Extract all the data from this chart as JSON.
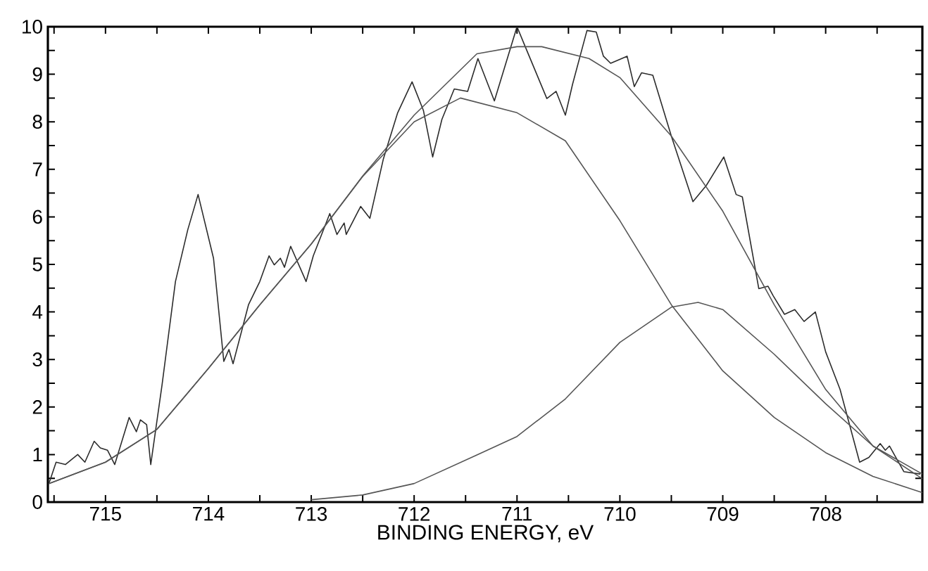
{
  "chart_data": {
    "type": "line",
    "xlabel": "BINDING ENERGY, eV",
    "xlim": [
      715.56,
      707.06
    ],
    "ylim": [
      0,
      10
    ],
    "xticks": [
      715,
      {
        "value": 714.5,
        "label": null
      },
      714,
      {
        "value": 713.5,
        "label": null
      },
      713,
      {
        "value": 712.5,
        "label": null
      },
      712,
      {
        "value": 711.5,
        "label": null
      },
      711,
      {
        "value": 710.5,
        "label": null
      },
      710,
      {
        "value": 709.5,
        "label": null
      },
      709,
      {
        "value": 708.5,
        "label": null
      },
      708,
      {
        "value": 707.5,
        "label": null
      },
      {
        "value": 715.5,
        "label": null
      }
    ],
    "yticks": [
      0,
      {
        "value": 0.5,
        "label": null
      },
      1,
      {
        "value": 1.5,
        "label": null
      },
      2,
      {
        "value": 2.5,
        "label": null
      },
      3,
      {
        "value": 3.5,
        "label": null
      },
      4,
      {
        "value": 4.5,
        "label": null
      },
      5,
      {
        "value": 5.5,
        "label": null
      },
      6,
      {
        "value": 6.5,
        "label": null
      },
      7,
      {
        "value": 7.5,
        "label": null
      },
      8,
      {
        "value": 8.5,
        "label": null
      },
      9,
      {
        "value": 9.5,
        "label": null
      },
      10
    ],
    "grid": false,
    "marker": "none",
    "line_style": "solid",
    "series": [
      {
        "color": "#2b2b2b",
        "x": [
          715.55,
          715.48,
          715.39,
          715.27,
          715.2,
          715.11,
          715.05,
          714.98,
          714.91,
          714.77,
          714.7,
          714.66,
          714.6,
          714.56,
          714.45,
          714.32,
          714.2,
          714.1,
          713.95,
          713.85,
          713.8,
          713.76,
          713.61,
          713.5,
          713.41,
          713.36,
          713.3,
          713.26,
          713.2,
          713.05,
          712.98,
          712.82,
          712.75,
          712.68,
          712.66,
          712.52,
          712.43,
          712.3,
          712.16,
          712.02,
          711.91,
          711.82,
          711.73,
          711.61,
          711.48,
          711.38,
          711.22,
          711.0,
          710.92,
          710.71,
          710.62,
          710.53,
          710.46,
          710.32,
          710.23,
          710.16,
          710.09,
          709.93,
          709.86,
          709.79,
          709.68,
          709.5,
          709.29,
          709.16,
          708.99,
          708.87,
          708.81,
          708.65,
          708.56,
          708.51,
          708.4,
          708.3,
          708.21,
          708.1,
          708.0,
          707.86,
          707.67,
          707.58,
          707.47,
          707.42,
          707.38,
          707.24,
          707.08
        ],
        "values": [
          0.39,
          0.84,
          0.79,
          1.0,
          0.84,
          1.28,
          1.14,
          1.09,
          0.79,
          1.78,
          1.48,
          1.73,
          1.63,
          0.79,
          2.47,
          4.64,
          5.73,
          6.47,
          5.13,
          2.96,
          3.21,
          2.91,
          4.15,
          4.64,
          5.18,
          4.99,
          5.13,
          4.94,
          5.38,
          4.64,
          5.18,
          6.07,
          5.63,
          5.87,
          5.63,
          6.22,
          5.97,
          7.21,
          8.19,
          8.84,
          8.24,
          7.26,
          8.05,
          8.69,
          8.64,
          9.33,
          8.44,
          10.0,
          9.58,
          8.49,
          8.64,
          8.14,
          8.79,
          9.92,
          9.89,
          9.38,
          9.23,
          9.38,
          8.74,
          9.03,
          8.98,
          7.7,
          6.32,
          6.66,
          7.26,
          6.47,
          6.42,
          4.49,
          4.54,
          4.34,
          3.95,
          4.05,
          3.8,
          4.0,
          3.16,
          2.37,
          0.84,
          0.94,
          1.23,
          1.09,
          1.18,
          0.64,
          0.59
        ]
      },
      {
        "color": "#555555",
        "x": [
          715.55,
          715.0,
          714.5,
          714.0,
          713.5,
          713.0,
          712.5,
          712.0,
          711.39,
          711.0,
          710.76,
          710.3,
          710.0,
          709.5,
          709.0,
          708.5,
          708.0,
          707.54,
          707.06
        ],
        "values": [
          0.39,
          0.84,
          1.53,
          2.81,
          4.15,
          5.43,
          6.86,
          8.14,
          9.43,
          9.58,
          9.58,
          9.33,
          8.93,
          7.7,
          6.12,
          4.15,
          2.37,
          1.18,
          0.59
        ]
      },
      {
        "color": "#555555",
        "x": [
          715.55,
          715.0,
          714.5,
          714.0,
          713.5,
          713.0,
          712.5,
          712.0,
          711.55,
          711.0,
          710.53,
          710.0,
          709.5,
          709.0,
          708.5,
          708.0,
          707.54,
          707.06
        ],
        "values": [
          0.39,
          0.84,
          1.53,
          2.81,
          4.15,
          5.43,
          6.85,
          8.0,
          8.5,
          8.19,
          7.6,
          5.92,
          4.15,
          2.76,
          1.78,
          1.04,
          0.54,
          0.2
        ]
      },
      {
        "color": "#555555",
        "x": [
          713.0,
          712.5,
          712.0,
          711.39,
          711.0,
          710.53,
          710.0,
          709.5,
          709.24,
          709.0,
          708.5,
          708.0,
          707.54,
          707.06
        ],
        "values": [
          0.05,
          0.15,
          0.39,
          0.99,
          1.38,
          2.17,
          3.36,
          4.1,
          4.2,
          4.05,
          3.11,
          2.07,
          1.18,
          0.49
        ]
      }
    ]
  }
}
